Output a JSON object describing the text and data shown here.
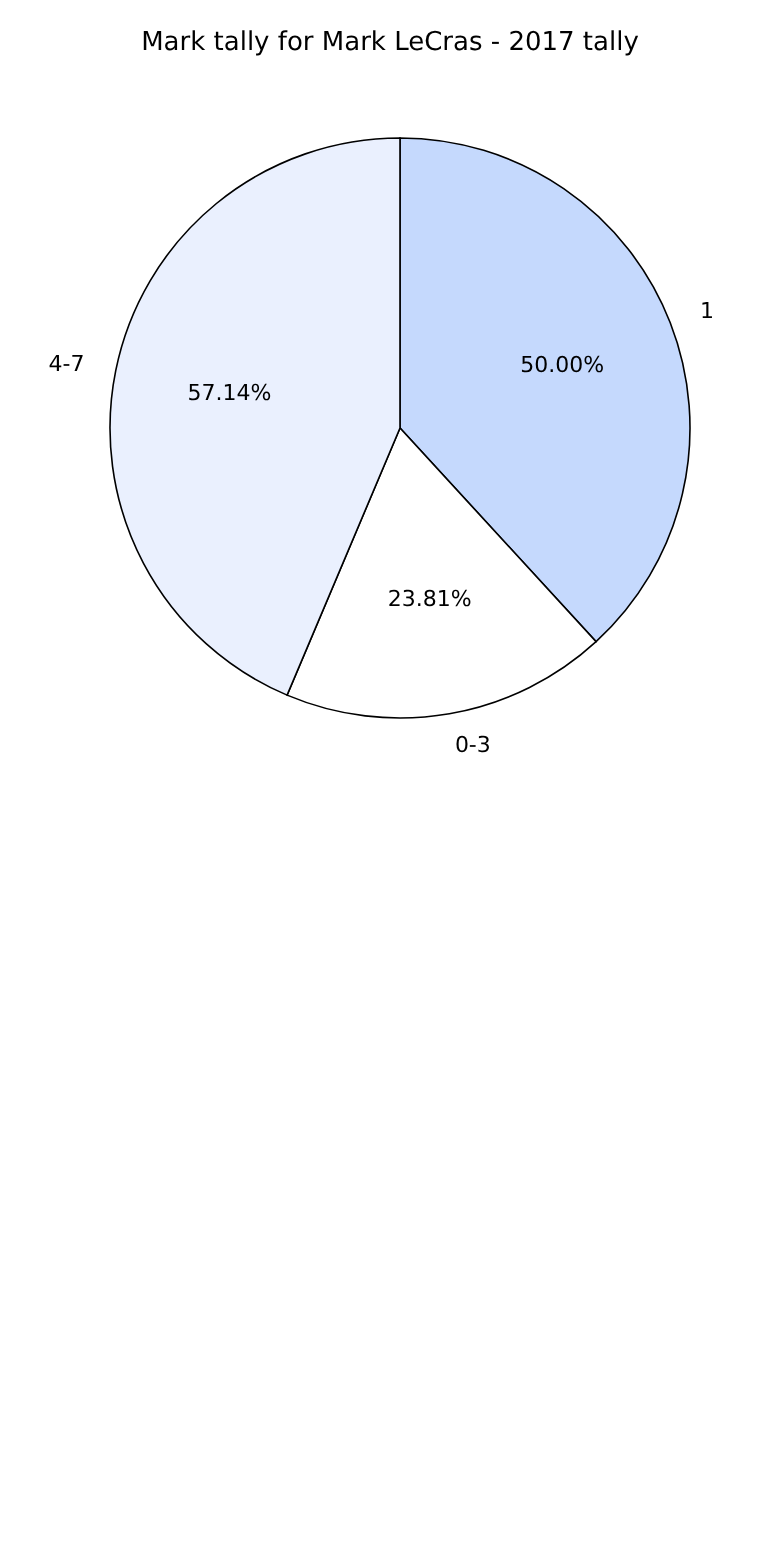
{
  "chart_data": {
    "type": "pie",
    "title": "Mark tally for Mark LeCras - 2017 tally",
    "categories": [
      "1",
      "0-3",
      "4-7"
    ],
    "values": [
      50,
      23.81,
      57.14
    ],
    "value_labels": [
      "50.00%",
      "23.81%",
      "57.14%"
    ],
    "colors": [
      "#c5d9fd",
      "#ffffff",
      "#eaf0fe"
    ]
  }
}
